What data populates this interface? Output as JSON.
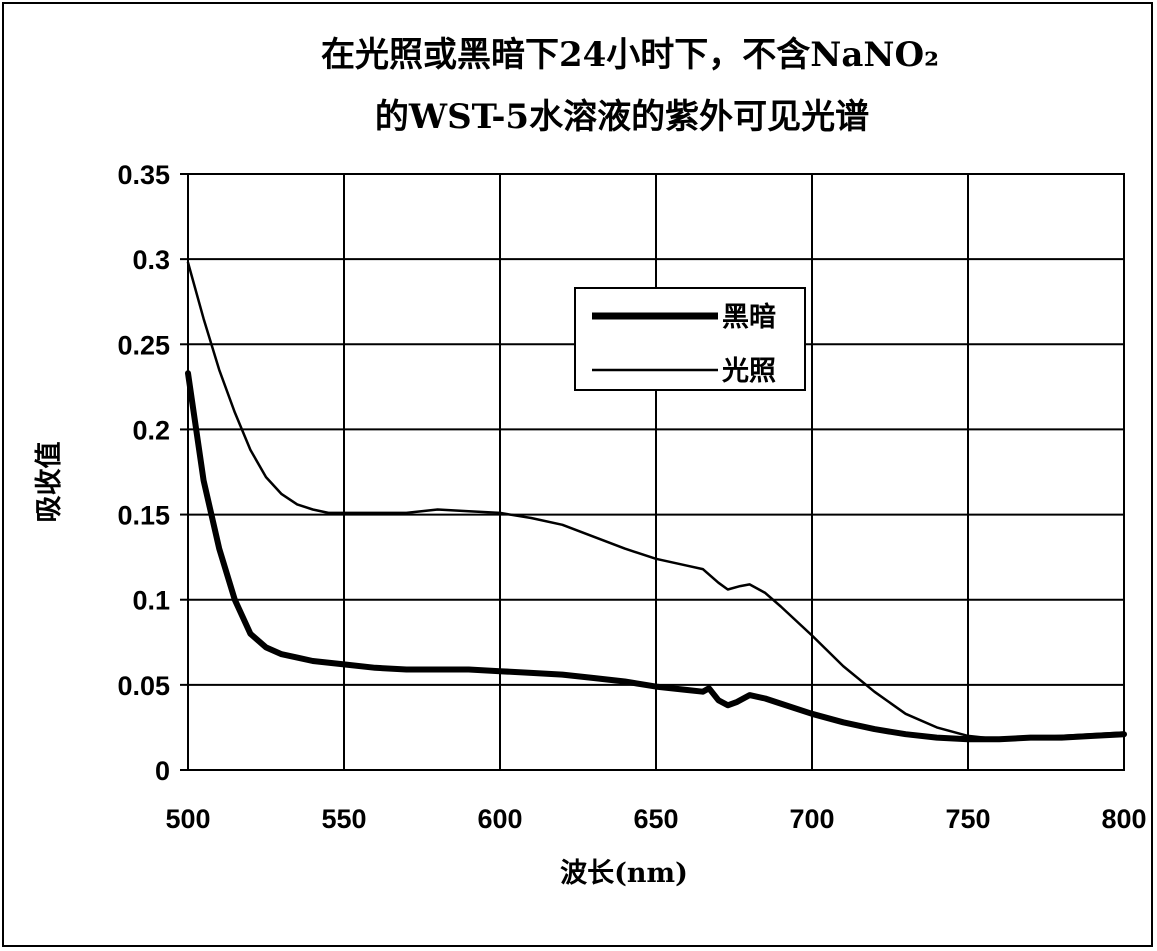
{
  "chart_data": {
    "type": "line",
    "title_lines": [
      "在光照或黑暗下24小时下，不含NaNO₂",
      "的WST-5水溶液的紫外可见光谱"
    ],
    "xlabel": "波长(nm)",
    "ylabel": "吸收值",
    "xlim": [
      500,
      800
    ],
    "ylim": [
      0,
      0.35
    ],
    "x_ticks": [
      "500",
      "550",
      "600",
      "650",
      "700",
      "750",
      "800"
    ],
    "y_ticks": [
      "0",
      "0.05",
      "0.1",
      "0.15",
      "0.2",
      "0.25",
      "0.3",
      "0.35"
    ],
    "grid": true,
    "legend_position": "upper-right inside plot",
    "series": [
      {
        "name": "黑暗",
        "color": "#000000",
        "x": [
          500,
          505,
          510,
          515,
          520,
          525,
          530,
          535,
          540,
          550,
          560,
          570,
          580,
          590,
          600,
          610,
          620,
          630,
          640,
          650,
          660,
          665,
          667,
          670,
          673,
          676,
          680,
          685,
          690,
          700,
          710,
          720,
          730,
          740,
          750,
          760,
          770,
          780,
          790,
          800
        ],
        "y": [
          0.233,
          0.17,
          0.13,
          0.1,
          0.08,
          0.072,
          0.068,
          0.066,
          0.064,
          0.062,
          0.06,
          0.059,
          0.059,
          0.059,
          0.058,
          0.057,
          0.056,
          0.054,
          0.052,
          0.049,
          0.047,
          0.046,
          0.048,
          0.041,
          0.038,
          0.04,
          0.044,
          0.042,
          0.039,
          0.033,
          0.028,
          0.024,
          0.021,
          0.019,
          0.018,
          0.018,
          0.019,
          0.019,
          0.02,
          0.021
        ]
      },
      {
        "name": "光照",
        "color": "#000000",
        "x": [
          500,
          505,
          510,
          515,
          520,
          525,
          530,
          535,
          540,
          545,
          550,
          560,
          570,
          580,
          590,
          600,
          610,
          620,
          630,
          640,
          650,
          660,
          665,
          670,
          673,
          677,
          680,
          685,
          690,
          700,
          710,
          720,
          730,
          740,
          750,
          760,
          770,
          780,
          790,
          800
        ],
        "y": [
          0.298,
          0.265,
          0.235,
          0.21,
          0.188,
          0.172,
          0.162,
          0.156,
          0.153,
          0.151,
          0.151,
          0.151,
          0.151,
          0.153,
          0.152,
          0.151,
          0.148,
          0.144,
          0.137,
          0.13,
          0.124,
          0.12,
          0.118,
          0.11,
          0.106,
          0.108,
          0.109,
          0.104,
          0.096,
          0.079,
          0.061,
          0.046,
          0.033,
          0.025,
          0.02,
          0.018,
          0.019,
          0.02,
          0.021,
          0.022
        ]
      }
    ]
  }
}
